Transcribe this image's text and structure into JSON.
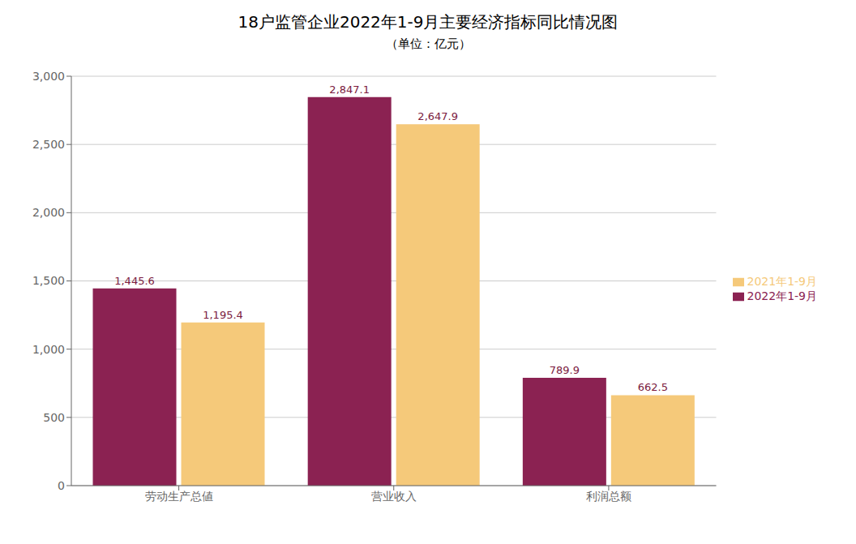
{
  "chart_data": {
    "type": "bar",
    "title": "18户监管企业2022年1-9月主要经济指标同比情况图",
    "subtitle": "（单位：亿元）",
    "categories": [
      "劳动生产总値",
      "营业收入",
      "利润总额"
    ],
    "series": [
      {
        "name": "2022年1-9月",
        "color": "#8B2252",
        "values": [
          1445.6,
          2847.1,
          789.9
        ],
        "value_labels": [
          "1,445.6",
          "2,847.1",
          "789.9"
        ]
      },
      {
        "name": "2021年1-9月",
        "color": "#F5C97A",
        "values": [
          1195.4,
          2647.9,
          662.5
        ],
        "value_labels": [
          "1,195.4",
          "2,647.9",
          "662.5"
        ]
      }
    ],
    "ylim": [
      0,
      3000
    ],
    "yticks": [
      0,
      500,
      {
        "value": 1000,
        "label": "1,000"
      },
      {
        "value": 1500,
        "label": "1,500"
      },
      {
        "value": 2000,
        "label": "2,000"
      },
      {
        "value": 2500,
        "label": "2,500"
      },
      {
        "value": 3000,
        "label": "3,000"
      }
    ],
    "grid": true,
    "legend": "right",
    "data_labels": true
  }
}
